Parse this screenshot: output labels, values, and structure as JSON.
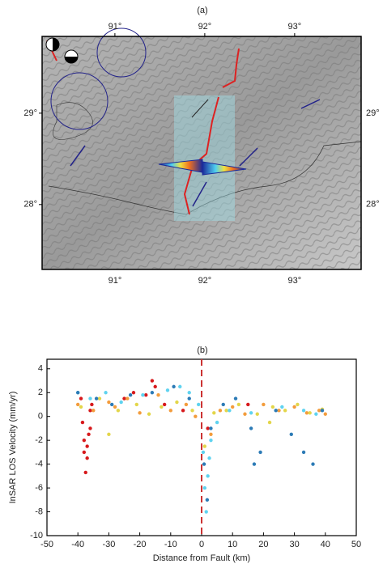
{
  "chart_data": [
    {
      "type": "map",
      "title": "(a)",
      "xlim": [
        90.19,
        93.74
      ],
      "ylim": [
        27.29,
        29.84
      ],
      "xticks": [
        {
          "value": 91,
          "label": "91°"
        },
        {
          "value": 92,
          "label": "92°"
        },
        {
          "value": 93,
          "label": "93°"
        }
      ],
      "yticks": [
        {
          "value": 28,
          "label": "28°"
        },
        {
          "value": 29,
          "label": "29°"
        }
      ]
    },
    {
      "type": "scatter",
      "title": "(b)",
      "xlabel": "Distance from Fault (km)",
      "ylabel": "InSAR LOS Velocity (mm/yr)",
      "xlim": [
        -50,
        50
      ],
      "ylim": [
        -10,
        4.8
      ],
      "xticks": [
        -50,
        -40,
        -30,
        -20,
        -10,
        0,
        10,
        20,
        30,
        40,
        50
      ],
      "yticks": [
        -10,
        -8,
        -6,
        -4,
        -2,
        0,
        2,
        4
      ],
      "series": [
        {
          "color": "#d7191c",
          "x": [
            -39,
            -38.5,
            -38,
            -37.5,
            -37,
            -36.5,
            -36,
            -35.5,
            -38,
            -37,
            -36,
            -25,
            -22,
            -18,
            -16,
            -15,
            -12,
            -6,
            2,
            15
          ],
          "values": [
            1.5,
            -0.5,
            -2,
            -4.7,
            -3.5,
            -1.5,
            0.5,
            1,
            -3,
            -2.5,
            -1,
            1.5,
            2,
            1.8,
            3,
            2.5,
            1,
            0.5,
            -1,
            1
          ]
        },
        {
          "color": "#f39c3c",
          "x": [
            -40,
            -35,
            -30,
            -28,
            -24,
            -20,
            -14,
            -10,
            -5,
            -2,
            3,
            6,
            10,
            14,
            20,
            25,
            30,
            34,
            38,
            40
          ],
          "values": [
            1,
            0.5,
            1.2,
            0.8,
            1.5,
            0.3,
            1.8,
            0.5,
            1,
            0,
            -1.5,
            0.5,
            0.8,
            0.2,
            1,
            0.5,
            0.8,
            0.3,
            0.5,
            0.2
          ]
        },
        {
          "color": "#e3d64a",
          "x": [
            -39,
            -33,
            -27,
            -21,
            -17,
            -13,
            -8,
            -3,
            1,
            4,
            8,
            12,
            18,
            23,
            27,
            31,
            35,
            39,
            -30,
            22
          ],
          "values": [
            0.8,
            1.5,
            0.5,
            1,
            0.2,
            0.8,
            1.2,
            0.5,
            -2.5,
            0.3,
            0.5,
            1,
            0.2,
            0.8,
            0.5,
            1,
            0.3,
            0.6,
            -1.5,
            -0.5
          ]
        },
        {
          "color": "#5fd3f0",
          "x": [
            -40,
            -36,
            -31,
            -26,
            -19,
            -11,
            -7,
            -4,
            -1,
            0.5,
            1,
            1.5,
            2,
            2.5,
            3,
            5,
            9,
            16,
            26,
            33,
            37
          ],
          "values": [
            2,
            1.5,
            2,
            1.2,
            1.8,
            2.2,
            2.5,
            2,
            1,
            -3,
            -6,
            -8,
            -5,
            -3.5,
            -2,
            -0.5,
            0.5,
            0.3,
            0.8,
            0.5,
            0.2
          ]
        },
        {
          "color": "#2c7bb6",
          "x": [
            -40,
            -34,
            -29,
            -23,
            -16,
            -9,
            -4,
            0.8,
            1.8,
            3,
            7,
            11,
            16,
            17,
            19,
            24,
            29,
            33,
            36,
            39
          ],
          "values": [
            2,
            1.5,
            1,
            1.8,
            2,
            2.5,
            1.5,
            -4,
            -7,
            -1,
            1,
            1.5,
            -1,
            -4,
            -3,
            0.5,
            -1.5,
            -3,
            -4,
            0.5
          ]
        }
      ]
    }
  ]
}
